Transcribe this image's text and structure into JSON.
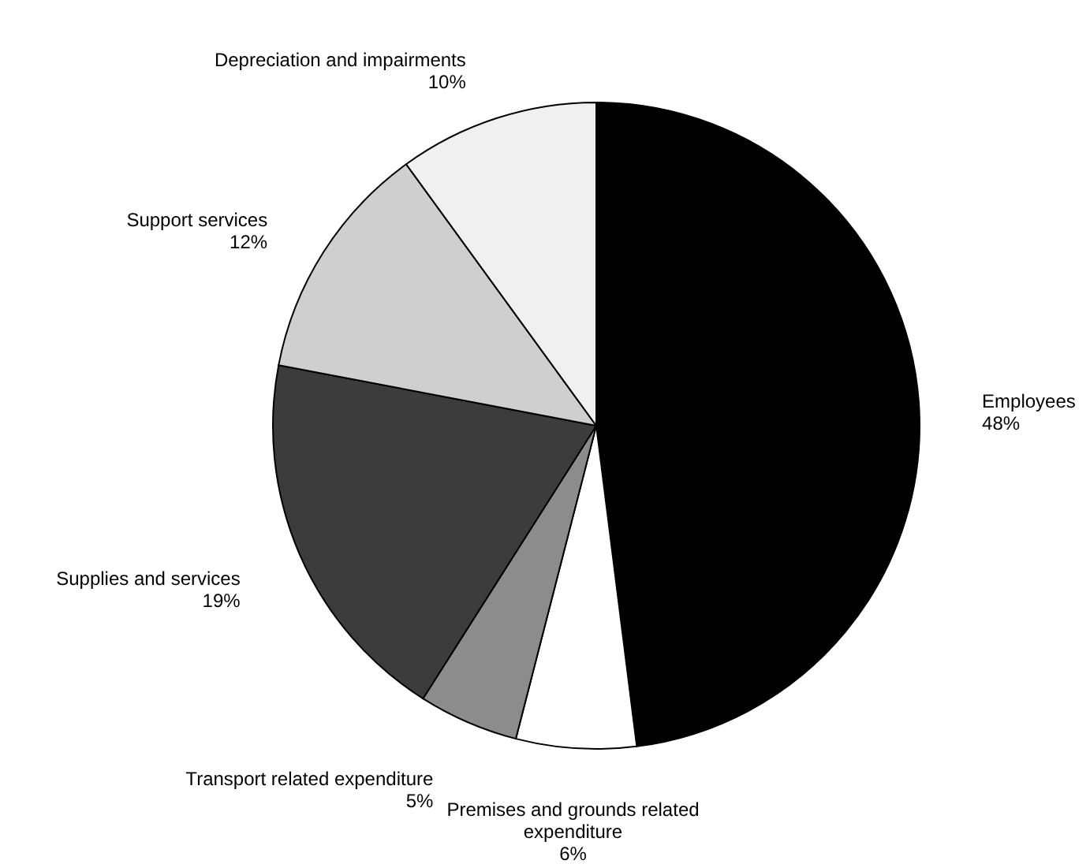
{
  "chart_data": {
    "type": "pie",
    "categories": [
      "Employees",
      "Premises and grounds related expenditure",
      "Transport related expenditure",
      "Supplies and services",
      "Support services",
      "Depreciation and impairments"
    ],
    "values": [
      48,
      6,
      5,
      19,
      12,
      10
    ],
    "value_labels": [
      "48%",
      "6%",
      "5%",
      "19%",
      "12%",
      "10%"
    ],
    "colors": [
      "#000000",
      "#ffffff",
      "#8c8c8c",
      "#3c3c3c",
      "#cfcfcf",
      "#f0f0f0"
    ]
  }
}
